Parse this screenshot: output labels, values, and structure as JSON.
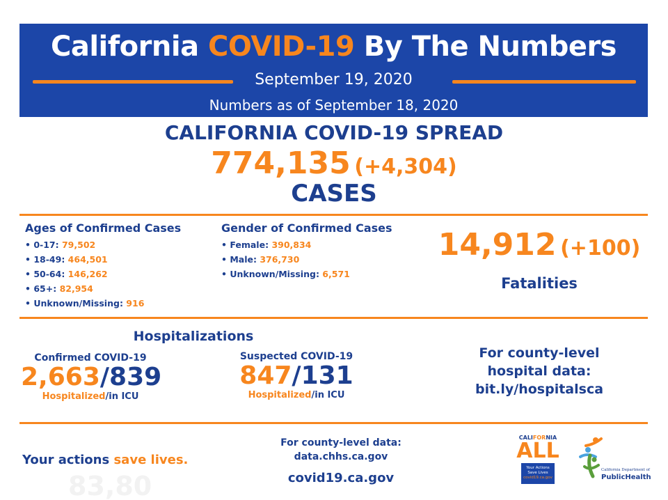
{
  "header": {
    "title_pre": "California ",
    "title_highlight": "COVID-19",
    "title_post": " By The Numbers",
    "date": "September 19, 2020",
    "as_of": "Numbers as of September 18, 2020"
  },
  "spread": {
    "heading": "CALIFORNIA COVID-19 SPREAD",
    "cases_total": "774,135",
    "cases_delta": "(+4,304)",
    "cases_label": "CASES"
  },
  "ages": {
    "title": "Ages of Confirmed Cases",
    "items": [
      {
        "label": "• 0-17: ",
        "value": "79,502"
      },
      {
        "label": "• 18-49: ",
        "value": "464,501"
      },
      {
        "label": "• 50-64: ",
        "value": "146,262"
      },
      {
        "label": "• 65+: ",
        "value": "82,954"
      },
      {
        "label": "• Unknown/Missing: ",
        "value": "916"
      }
    ]
  },
  "gender": {
    "title": "Gender of Confirmed Cases",
    "items": [
      {
        "label": "• Female: ",
        "value": "390,834"
      },
      {
        "label": "• Male: ",
        "value": "376,730"
      },
      {
        "label": "• Unknown/Missing: ",
        "value": "6,571"
      }
    ]
  },
  "fatalities": {
    "total": "14,912",
    "delta": "(+100)",
    "label": "Fatalities"
  },
  "hospitalizations": {
    "heading": "Hospitalizations",
    "confirmed": {
      "title": "Confirmed COVID-19",
      "hospitalized": "2,663",
      "icu": "839",
      "foot_hosp": "Hospitalized",
      "foot_icu": "/in ICU"
    },
    "suspected": {
      "title": "Suspected COVID-19",
      "hospitalized": "847",
      "icu": "131",
      "foot_hosp": "Hospitalized",
      "foot_icu": "/in ICU"
    },
    "county": {
      "line1": "For county-level",
      "line2": "hospital data:",
      "line3": "bit.ly/hospitalsca"
    }
  },
  "footer": {
    "tag_a": "Your actions ",
    "tag_b": "save lives.",
    "ghost_text": "83,80",
    "county_line1": "For county-level data:",
    "county_line2": "data.chhs.ca.gov",
    "site": "covid19.ca.gov"
  },
  "logos": {
    "ca_all_top_a": "CALI",
    "ca_all_top_b": "FOR",
    "ca_all_top_c": "NIA",
    "ca_all_word": "ALL",
    "ca_all_box1": "Your Actions",
    "ca_all_box2": "Save Lives",
    "ca_all_box3": "covid19.ca.gov",
    "cdph_dept": "California Department of",
    "cdph_name": "PublicHealth"
  },
  "colors": {
    "navy": "#1d3f8f",
    "banner_blue": "#1c46a8",
    "orange": "#f7861e"
  }
}
